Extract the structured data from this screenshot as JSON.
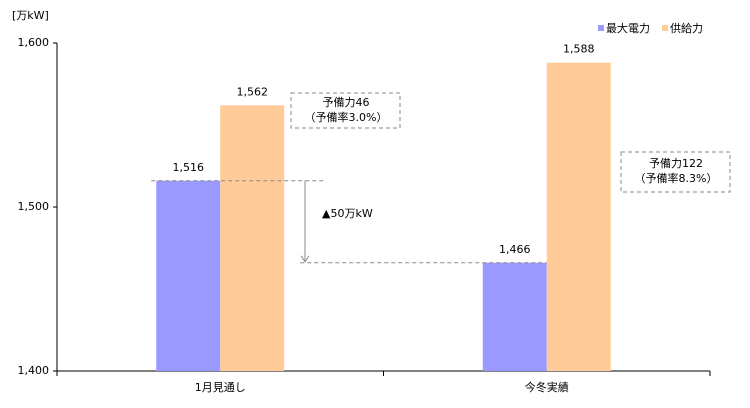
{
  "chart_data": {
    "type": "bar",
    "y_label": "[万kW]",
    "categories": [
      "1月見通し",
      "今冬実績"
    ],
    "series": [
      {
        "name": "最大電力",
        "color": "#9999ff",
        "values": [
          1516,
          1466
        ],
        "value_labels": [
          "1,516",
          "1,466"
        ]
      },
      {
        "name": "供給力",
        "color": "#ffcc99",
        "values": [
          1562,
          1588
        ],
        "value_labels": [
          "1,562",
          "1,588"
        ]
      }
    ],
    "ylim": [
      1400,
      1600
    ],
    "yticks": [
      {
        "value": 1400,
        "label": "1,400"
      },
      {
        "value": 1500,
        "label": "1,500"
      },
      {
        "value": 1600,
        "label": "1,600"
      }
    ],
    "legend": "top-right",
    "annotations": [
      {
        "lines": [
          "予備力46",
          "（予備率3.0%）"
        ]
      },
      {
        "lines": [
          "予備力122",
          "（予備率8.3%）"
        ]
      }
    ],
    "difference_label": "▲50万kW"
  }
}
